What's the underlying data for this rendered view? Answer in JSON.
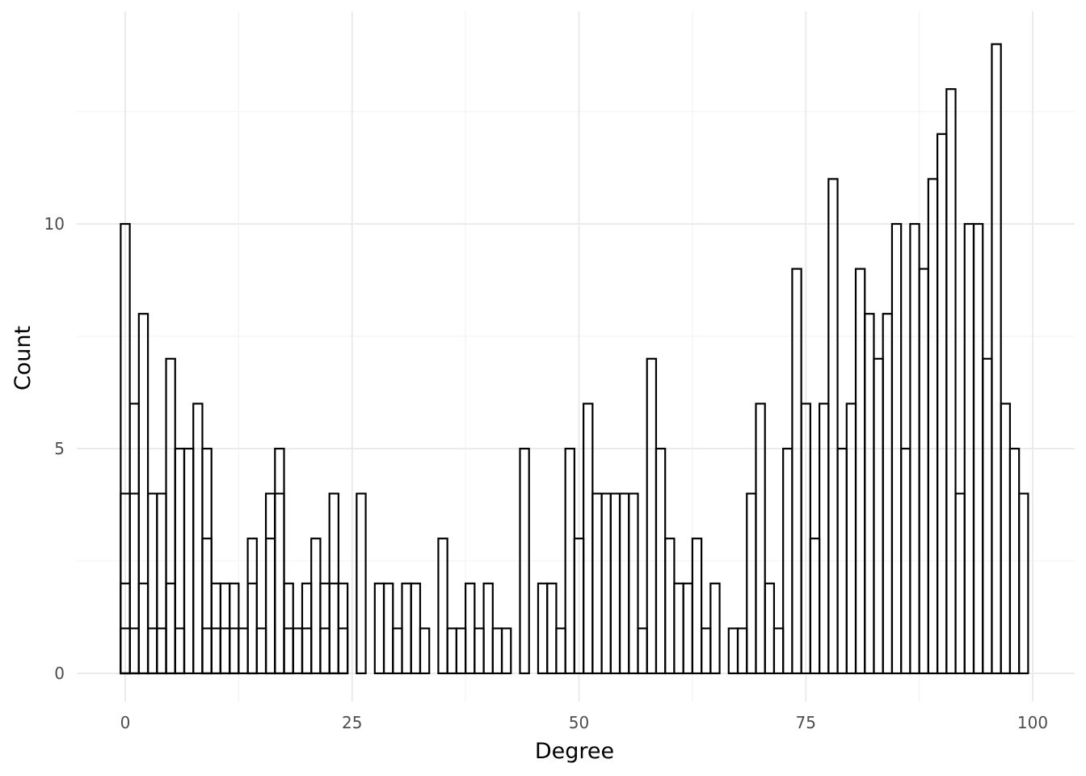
{
  "chart_data": {
    "type": "bar",
    "subtype": "histogram",
    "xlabel": "Degree",
    "ylabel": "Count",
    "xlim": [
      -5,
      103
    ],
    "ylim": [
      -0.5,
      14.6
    ],
    "x_ticks": [
      0,
      25,
      50,
      75,
      100
    ],
    "y_ticks": [
      0,
      5,
      10
    ],
    "grid": true,
    "bin_width": 1,
    "series": [
      {
        "layers": [
          {
            "bins": [
              [
                0,
                10
              ],
              [
                1,
                6
              ],
              [
                2,
                8
              ],
              [
                3,
                4
              ],
              [
                4,
                4
              ],
              [
                5,
                7
              ],
              [
                6,
                5
              ],
              [
                7,
                5
              ],
              [
                8,
                6
              ],
              [
                9,
                5
              ],
              [
                10,
                2
              ],
              [
                11,
                2
              ],
              [
                12,
                2
              ],
              [
                14,
                3
              ],
              [
                16,
                4
              ],
              [
                17,
                5
              ],
              [
                18,
                2
              ],
              [
                20,
                2
              ],
              [
                21,
                3
              ],
              [
                22,
                2
              ],
              [
                23,
                4
              ],
              [
                24,
                2
              ],
              [
                26,
                4
              ],
              [
                28,
                2
              ],
              [
                29,
                2
              ],
              [
                31,
                2
              ],
              [
                32,
                2
              ],
              [
                35,
                3
              ],
              [
                38,
                2
              ],
              [
                40,
                2
              ],
              [
                44,
                5
              ],
              [
                46,
                2
              ],
              [
                47,
                2
              ],
              [
                49,
                5
              ],
              [
                50,
                3
              ],
              [
                51,
                6
              ],
              [
                52,
                4
              ],
              [
                53,
                4
              ],
              [
                54,
                4
              ],
              [
                55,
                4
              ],
              [
                56,
                4
              ],
              [
                58,
                7
              ],
              [
                59,
                5
              ],
              [
                60,
                3
              ],
              [
                61,
                2
              ],
              [
                62,
                2
              ],
              [
                63,
                3
              ],
              [
                65,
                2
              ],
              [
                69,
                4
              ],
              [
                70,
                6
              ],
              [
                71,
                2
              ],
              [
                73,
                5
              ],
              [
                74,
                9
              ],
              [
                75,
                6
              ],
              [
                76,
                3
              ],
              [
                77,
                6
              ],
              [
                78,
                11
              ],
              [
                79,
                5
              ],
              [
                80,
                6
              ],
              [
                81,
                9
              ],
              [
                82,
                8
              ],
              [
                83,
                7
              ],
              [
                84,
                8
              ],
              [
                85,
                10
              ],
              [
                86,
                5
              ],
              [
                87,
                10
              ],
              [
                88,
                9
              ],
              [
                89,
                11
              ],
              [
                90,
                12
              ],
              [
                91,
                13
              ],
              [
                92,
                4
              ],
              [
                93,
                10
              ],
              [
                94,
                10
              ],
              [
                95,
                7
              ],
              [
                96,
                14
              ],
              [
                97,
                6
              ],
              [
                98,
                5
              ],
              [
                99,
                4
              ]
            ]
          },
          {
            "bins": [
              [
                0,
                4
              ],
              [
                1,
                4
              ],
              [
                2,
                2
              ],
              [
                3,
                1
              ],
              [
                4,
                1
              ],
              [
                5,
                2
              ],
              [
                6,
                1
              ],
              [
                9,
                3
              ],
              [
                11,
                1
              ],
              [
                12,
                1
              ],
              [
                14,
                2
              ],
              [
                15,
                1
              ],
              [
                16,
                3
              ],
              [
                17,
                4
              ],
              [
                18,
                1
              ],
              [
                19,
                1
              ],
              [
                20,
                1
              ],
              [
                22,
                1
              ],
              [
                24,
                1
              ],
              [
                30,
                1
              ],
              [
                33,
                1
              ],
              [
                36,
                1
              ],
              [
                37,
                1
              ],
              [
                39,
                1
              ],
              [
                41,
                1
              ],
              [
                42,
                1
              ],
              [
                48,
                1
              ],
              [
                57,
                1
              ],
              [
                64,
                1
              ],
              [
                67,
                1
              ],
              [
                68,
                1
              ],
              [
                72,
                1
              ]
            ]
          },
          {
            "bins": [
              [
                0,
                2
              ],
              [
                1,
                1
              ],
              [
                9,
                1
              ],
              [
                10,
                1
              ],
              [
                13,
                1
              ],
              [
                23,
                2
              ]
            ]
          },
          {
            "bins": [
              [
                0,
                1
              ]
            ]
          }
        ]
      }
    ]
  }
}
